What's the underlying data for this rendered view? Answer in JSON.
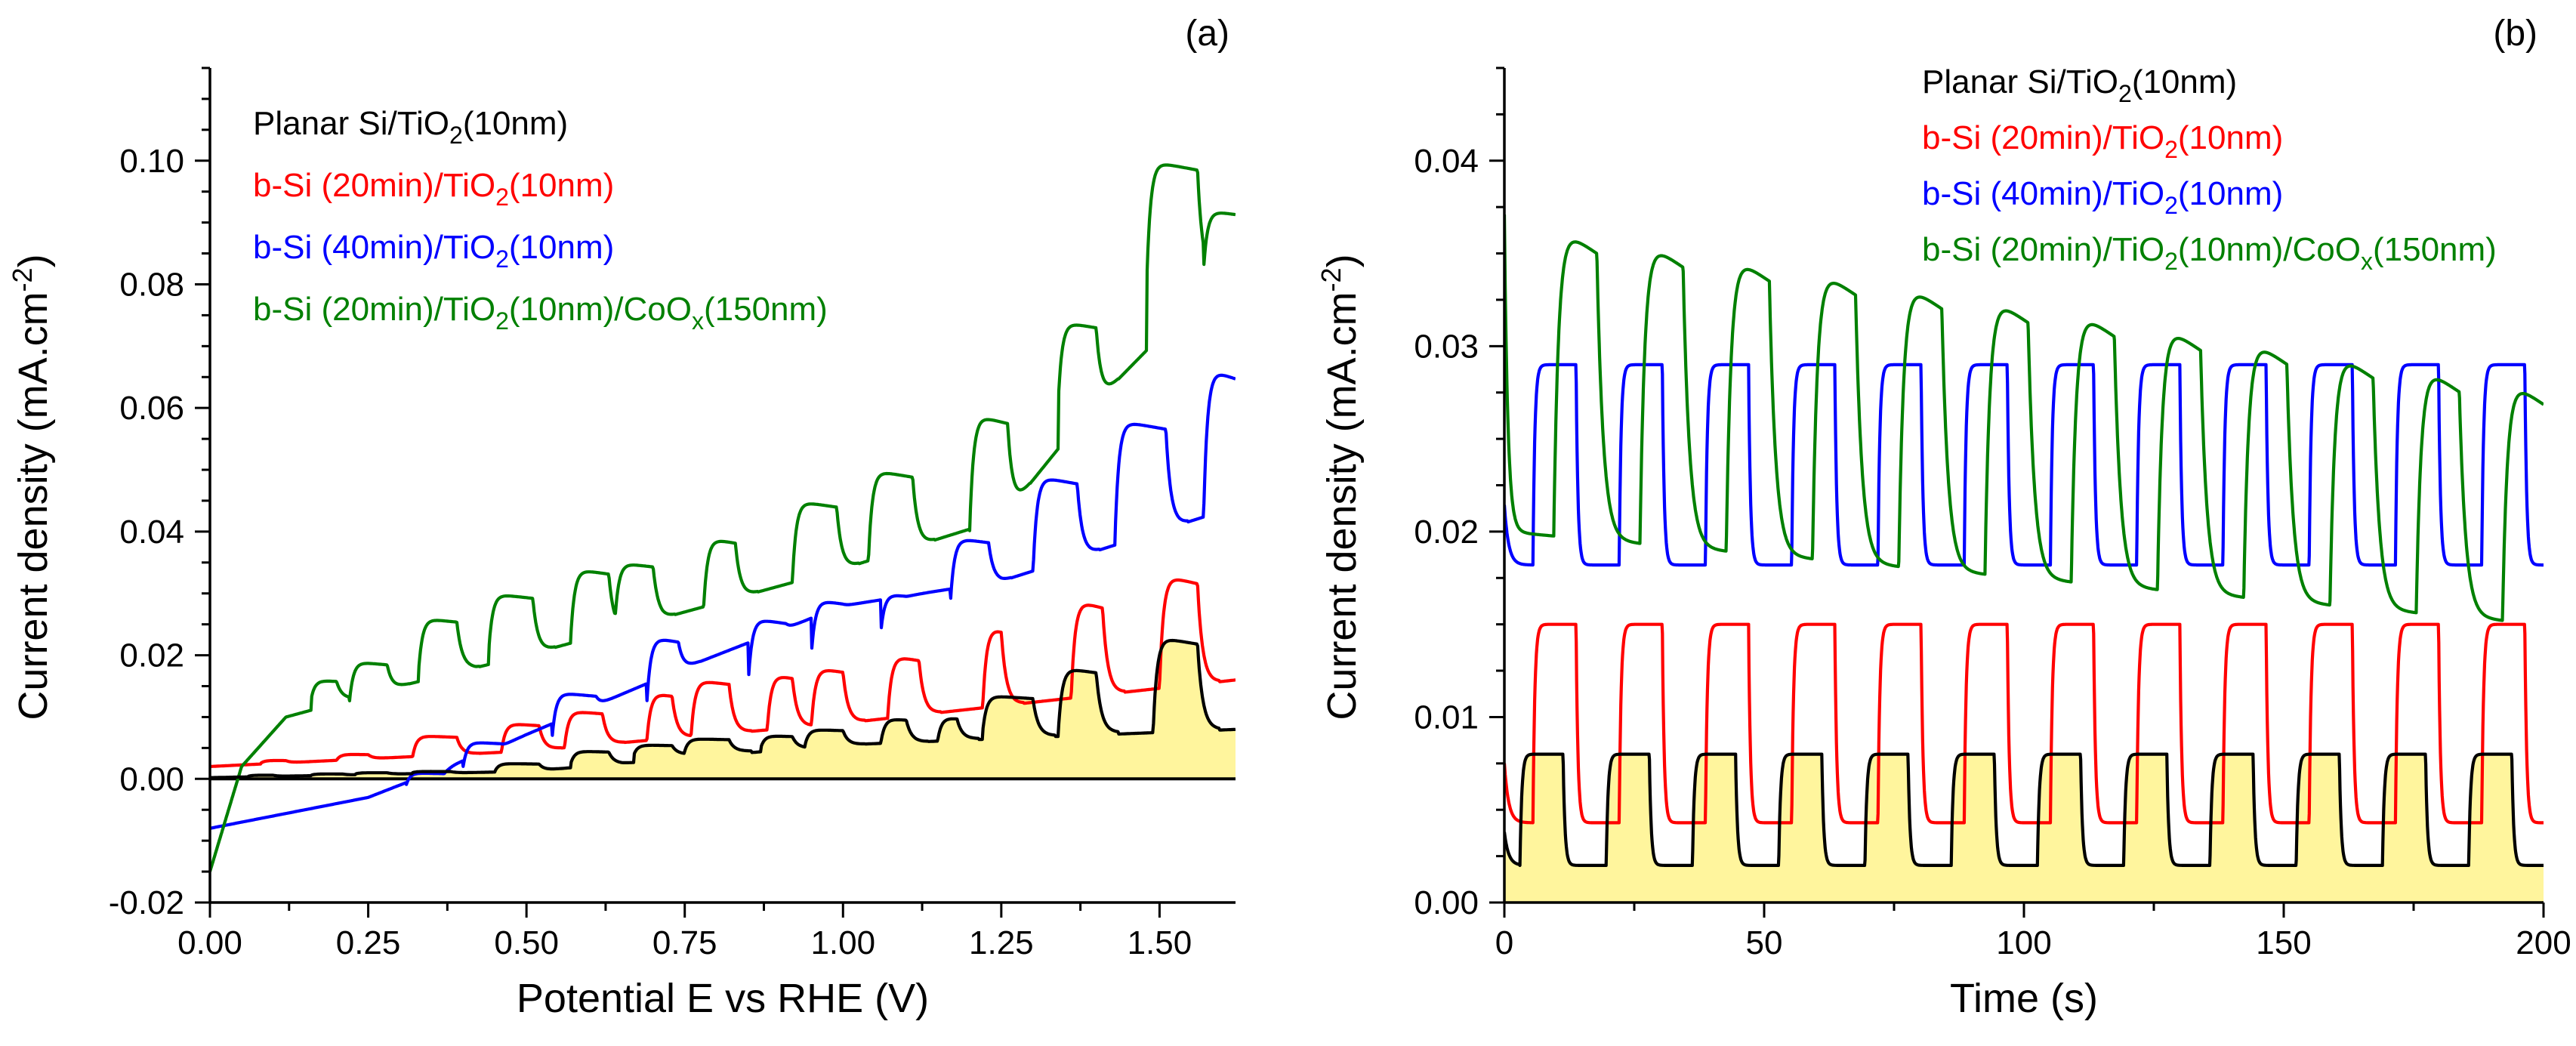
{
  "chart_data": [
    {
      "id": "a",
      "type": "line",
      "panel_label": "(a)",
      "xlabel": "Potential E vs RHE (V)",
      "ylabel": "Current density (mA.cm",
      "ylabel_sup": "-2",
      "ylabel_end": ")",
      "xlim": [
        0,
        1.62
      ],
      "ylim": [
        -0.02,
        0.115
      ],
      "xticks": [
        0,
        0.25,
        0.5,
        0.75,
        1.0,
        1.25,
        1.5
      ],
      "xtick_labels": [
        "0.00",
        "0.25",
        "0.50",
        "0.75",
        "1.00",
        "1.25",
        "1.50"
      ],
      "yticks": [
        -0.02,
        0,
        0.02,
        0.04,
        0.06,
        0.08,
        0.1
      ],
      "ytick_labels": [
        "-0.02",
        "0.00",
        "0.02",
        "0.04",
        "0.06",
        "0.08",
        "0.10"
      ],
      "series": [
        {
          "key": "planar",
          "name": "Planar Si/TiO2(10nm)",
          "name_pre": "Planar Si/TiO",
          "name_sub": "2",
          "name_post": "(10nm)",
          "name_sub2": "",
          "name_post2": "",
          "color": "#000000",
          "fill": "#fff59d",
          "profile": {
            "pulses": [
              [
                0.06,
                0.1,
                0.0004,
                0.0006
              ],
              [
                0.16,
                0.21,
                0.0006,
                0.0008
              ],
              [
                0.23,
                0.28,
                0.0008,
                0.001
              ],
              [
                0.32,
                0.38,
                0.001,
                0.0012
              ],
              [
                0.45,
                0.52,
                0.0012,
                0.0025
              ],
              [
                0.57,
                0.63,
                0.0025,
                0.0045
              ],
              [
                0.67,
                0.73,
                0.004,
                0.0055
              ],
              [
                0.75,
                0.82,
                0.0045,
                0.0065
              ],
              [
                0.87,
                0.92,
                0.005,
                0.007
              ],
              [
                0.94,
                1.0,
                0.0055,
                0.008
              ],
              [
                1.06,
                1.1,
                0.006,
                0.0098
              ],
              [
                1.15,
                1.18,
                0.0065,
                0.01
              ],
              [
                1.22,
                1.3,
                0.007,
                0.0135
              ],
              [
                1.34,
                1.4,
                0.0075,
                0.018
              ],
              [
                1.49,
                1.56,
                0.008,
                0.023
              ]
            ],
            "base": [
              [
                0,
                0.0002
              ],
              [
                0.5,
                0.0012
              ],
              [
                1.0,
                0.0055
              ],
              [
                1.62,
                0.008
              ]
            ]
          }
        },
        {
          "key": "b20",
          "name": "b-Si (20min)/TiO2(10nm)",
          "name_pre": "b-Si (20min)/TiO",
          "name_sub": "2",
          "name_post": "(10nm)",
          "name_sub2": "",
          "name_post2": "",
          "color": "#ff0000",
          "profile": {
            "pulses": [
              [
                0.08,
                0.12,
                0.0025,
                0.003
              ],
              [
                0.2,
                0.25,
                0.003,
                0.004
              ],
              [
                0.32,
                0.39,
                0.0035,
                0.007
              ],
              [
                0.46,
                0.52,
                0.004,
                0.009
              ],
              [
                0.56,
                0.62,
                0.005,
                0.011
              ],
              [
                0.69,
                0.73,
                0.006,
                0.014
              ],
              [
                0.76,
                0.82,
                0.007,
                0.016
              ],
              [
                0.88,
                0.92,
                0.0075,
                0.017
              ],
              [
                0.95,
                1.0,
                0.0085,
                0.018
              ],
              [
                1.07,
                1.12,
                0.009,
                0.02
              ],
              [
                1.22,
                1.25,
                0.01,
                0.025
              ],
              [
                1.36,
                1.41,
                0.012,
                0.029
              ],
              [
                1.5,
                1.56,
                0.015,
                0.033
              ]
            ],
            "base": [
              [
                0,
                0.002
              ],
              [
                0.5,
                0.0045
              ],
              [
                1.0,
                0.009
              ],
              [
                1.62,
                0.016
              ]
            ]
          }
        },
        {
          "key": "b40",
          "name": "b-Si (40min)/TiO2(10nm)",
          "name_pre": "b-Si (40min)/TiO",
          "name_sub": "2",
          "name_post": "(10nm)",
          "name_sub2": "",
          "name_post2": "",
          "color": "#0000ff",
          "profile": {
            "pulses": [
              [
                0.31,
                0.37,
                -0.001,
                0.001
              ],
              [
                0.4,
                0.46,
                0.002,
                0.006
              ],
              [
                0.54,
                0.61,
                0.006,
                0.014
              ],
              [
                0.69,
                0.74,
                0.012,
                0.023
              ],
              [
                0.85,
                0.91,
                0.015,
                0.026
              ],
              [
                0.95,
                1.0,
                0.02,
                0.029
              ],
              [
                1.06,
                1.1,
                0.024,
                0.03
              ],
              [
                1.17,
                1.23,
                0.029,
                0.039
              ],
              [
                1.3,
                1.37,
                0.033,
                0.049
              ],
              [
                1.43,
                1.51,
                0.04,
                0.058
              ],
              [
                1.57,
                1.62,
                0.044,
                0.0665
              ]
            ],
            "base": [
              [
                0,
                -0.008
              ],
              [
                0.25,
                -0.003
              ],
              [
                0.45,
                0.005
              ],
              [
                0.75,
                0.018
              ],
              [
                1.0,
                0.028
              ],
              [
                1.25,
                0.032
              ],
              [
                1.62,
                0.044
              ]
            ]
          }
        },
        {
          "key": "bco",
          "name": "b-Si (20min)/TiO2(10nm)/CoOx(150nm)",
          "name_pre": "b-Si (20min)/TiO",
          "name_sub": "2",
          "name_post": "(10nm)/CoO",
          "name_sub2": "x",
          "name_post2": "(150nm)",
          "color": "#008000",
          "profile": {
            "pulses": [
              [
                0.16,
                0.2,
                0.013,
                0.016
              ],
              [
                0.22,
                0.28,
                0.012,
                0.019
              ],
              [
                0.33,
                0.39,
                0.018,
                0.026
              ],
              [
                0.44,
                0.51,
                0.02,
                0.03
              ],
              [
                0.57,
                0.63,
                0.023,
                0.034
              ],
              [
                0.64,
                0.7,
                0.026,
                0.035
              ],
              [
                0.78,
                0.83,
                0.028,
                0.039
              ],
              [
                0.92,
                0.99,
                0.032,
                0.045
              ],
              [
                1.04,
                1.11,
                0.035,
                0.05
              ],
              [
                1.2,
                1.26,
                0.04,
                0.059
              ],
              [
                1.34,
                1.4,
                0.061,
                0.074
              ],
              [
                1.48,
                1.56,
                0.081,
                0.1
              ],
              [
                1.57,
                1.62,
                0.083,
                0.092
              ]
            ],
            "base": [
              [
                0,
                -0.015
              ],
              [
                0.05,
                0.002
              ],
              [
                0.12,
                0.01
              ],
              [
                0.3,
                0.015
              ],
              [
                0.5,
                0.02
              ],
              [
                0.75,
                0.027
              ],
              [
                1.0,
                0.034
              ],
              [
                1.25,
                0.042
              ],
              [
                1.4,
                0.061
              ],
              [
                1.62,
                0.084
              ]
            ]
          }
        }
      ]
    },
    {
      "id": "b",
      "type": "line",
      "panel_label": "(b)",
      "xlabel": "Time (s)",
      "ylabel": "Current density (mA.cm",
      "ylabel_sup": "-2",
      "ylabel_end": ")",
      "xlim": [
        0,
        200
      ],
      "ylim": [
        0,
        0.045
      ],
      "xticks": [
        0,
        50,
        100,
        150,
        200
      ],
      "xtick_labels": [
        "0",
        "50",
        "100",
        "150",
        "200"
      ],
      "yticks": [
        0,
        0.01,
        0.02,
        0.03,
        0.04
      ],
      "ytick_labels": [
        "0.00",
        "0.01",
        "0.02",
        "0.03",
        "0.04"
      ],
      "period_s": 16.6,
      "series": [
        {
          "key": "planar",
          "name": "Planar Si/TiO2(10nm)",
          "name_pre": "Planar Si/TiO",
          "name_sub": "2",
          "name_post": "(10nm)",
          "name_sub2": "",
          "name_post2": "",
          "color": "#000000",
          "fill": "#fff59d",
          "on": 0.008,
          "off": 0.002,
          "phase": 3.0
        },
        {
          "key": "b20",
          "name": "b-Si (20min)/TiO2(10nm)",
          "name_pre": "b-Si (20min)/TiO",
          "name_sub": "2",
          "name_post": "(10nm)",
          "name_sub2": "",
          "name_post2": "",
          "color": "#ff0000",
          "on": 0.015,
          "off": 0.0043,
          "phase": 5.5
        },
        {
          "key": "b40",
          "name": "b-Si (40min)/TiO2(10nm)",
          "name_pre": "b-Si (40min)/TiO",
          "name_sub": "2",
          "name_post": "(10nm)",
          "name_sub2": "",
          "name_post2": "",
          "color": "#0000ff",
          "on": 0.029,
          "off": 0.0182,
          "phase": 5.5
        },
        {
          "key": "bco",
          "name": "b-Si (20min)/TiO2(10nm)/CoOx(150nm)",
          "name_pre": "b-Si (20min)/TiO",
          "name_sub": "2",
          "name_post": "(10nm)/CoO",
          "name_sub2": "x",
          "name_post2": "(150nm)",
          "color": "#008000",
          "on_start": 0.037,
          "on_end": 0.028,
          "off_start": 0.02,
          "off_end": 0.015,
          "phase": 9.5
        }
      ]
    }
  ]
}
